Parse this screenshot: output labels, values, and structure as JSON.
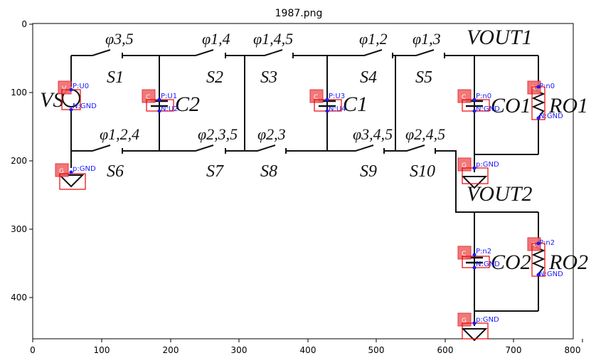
{
  "title": "1987.png",
  "axes": {
    "x_ticks": [
      "0",
      "100",
      "200",
      "300",
      "400",
      "500",
      "600",
      "700",
      "800"
    ],
    "y_ticks": [
      "0",
      "100",
      "200",
      "300",
      "400"
    ]
  },
  "circuit": {
    "phase_labels": {
      "s1": "φ3,5",
      "s2": "φ1,4",
      "s3": "φ1,4,5",
      "s4": "φ1,2",
      "s5": "φ1,3",
      "s6": "φ1,2,4",
      "s7": "φ2,3,5",
      "s8": "φ2,3",
      "s9": "φ3,4,5",
      "s10": "φ2,4,5"
    },
    "switches": {
      "s1": "S1",
      "s2": "S2",
      "s3": "S3",
      "s4": "S4",
      "s5": "S5",
      "s6": "S6",
      "s7": "S7",
      "s8": "S8",
      "s9": "S9",
      "s10": "S10"
    },
    "components": {
      "vs": "VS",
      "c2": "C2",
      "c1": "C1",
      "co1": "CO1",
      "co2": "CO2",
      "ro1": "RO1",
      "ro2": "RO2",
      "vout1": "VOUT1",
      "vout2": "VOUT2"
    }
  },
  "annotations": {
    "tags": {
      "v": "V",
      "c": "C",
      "g": "G",
      "r": "R"
    },
    "pins": {
      "vs_p": "P:U0",
      "vs_n": "N:GND",
      "c2_p": "P:U1",
      "c2_n": "N:U2",
      "c1_p": "P:U3",
      "c1_n": "N:U4",
      "co1_p": "P:n0",
      "co1_n": "N:GND",
      "ro1_p": "P:n0",
      "ro1_n": "N:GND",
      "co2_p": "P:n2",
      "co2_n": "N:GND",
      "ro2_p": "P:n2",
      "ro2_n": "N:GND",
      "gnd1": "p:GND",
      "gnd2": "p:GND",
      "gnd3": "p:GND"
    }
  },
  "colors": {
    "tag_fill": "#f06a6a",
    "box": "#ee0000",
    "pin_text": "#1a1aff",
    "wire": "#111111"
  }
}
